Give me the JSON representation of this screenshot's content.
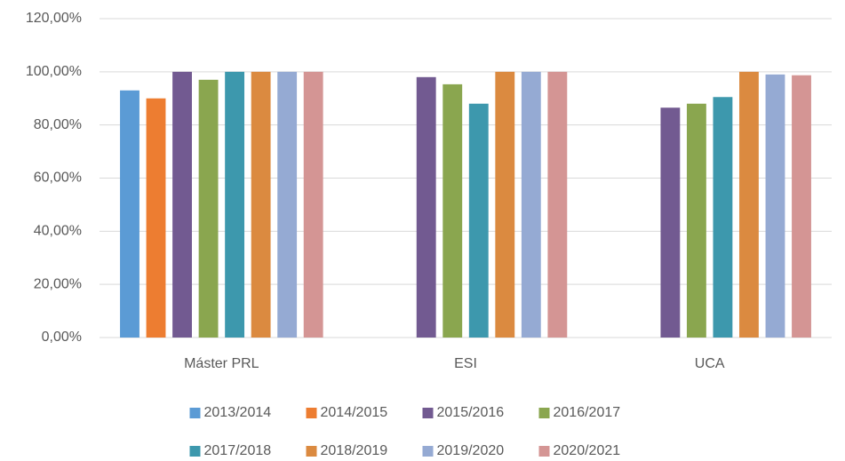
{
  "chart_data": {
    "type": "bar",
    "categories": [
      "Máster PRL",
      "ESI",
      "UCA"
    ],
    "series": [
      {
        "name": "2013/2014",
        "color": "#5b9bd5",
        "values": [
          93,
          null,
          null
        ]
      },
      {
        "name": "2014/2015",
        "color": "#ed7d31",
        "values": [
          90,
          null,
          null
        ]
      },
      {
        "name": "2015/2016",
        "color": "#725a91",
        "values": [
          100,
          98,
          86.5
        ]
      },
      {
        "name": "2016/2017",
        "color": "#8aa64f",
        "values": [
          97,
          95.3,
          88
        ]
      },
      {
        "name": "2017/2018",
        "color": "#3d98ad",
        "values": [
          100,
          88,
          90.5
        ]
      },
      {
        "name": "2018/2019",
        "color": "#db8a40",
        "values": [
          100,
          100,
          100
        ]
      },
      {
        "name": "2019/2020",
        "color": "#95aad3",
        "values": [
          100,
          100,
          99
        ]
      },
      {
        "name": "2020/2021",
        "color": "#d49594",
        "values": [
          100,
          100,
          98.7
        ]
      }
    ],
    "ylim": [
      0,
      120
    ],
    "yticks": [
      {
        "value": 0,
        "label": "0,00%"
      },
      {
        "value": 20,
        "label": "20,00%"
      },
      {
        "value": 40,
        "label": "40,00%"
      },
      {
        "value": 60,
        "label": "60,00%"
      },
      {
        "value": 80,
        "label": "80,00%"
      },
      {
        "value": 100,
        "label": "100,00%"
      },
      {
        "value": 120,
        "label": "120,00%"
      }
    ],
    "grid": true,
    "legend": "bottom"
  }
}
